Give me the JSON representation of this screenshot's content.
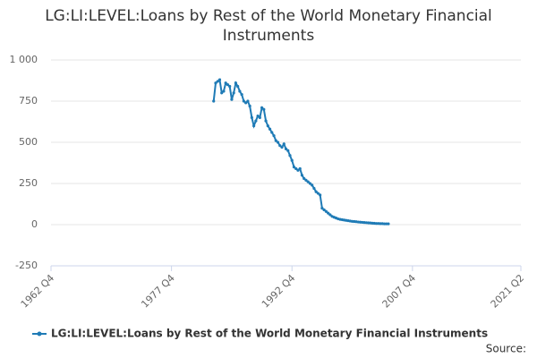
{
  "chart_data": {
    "type": "line",
    "title": "LG:LI:LEVEL:Loans by Rest of the World Monetary Financial Instruments",
    "source": "Source:",
    "x": [
      "1983 Q1",
      "1983 Q2",
      "1983 Q3",
      "1983 Q4",
      "1984 Q1",
      "1984 Q2",
      "1984 Q3",
      "1984 Q4",
      "1985 Q1",
      "1985 Q2",
      "1985 Q3",
      "1985 Q4",
      "1986 Q1",
      "1986 Q2",
      "1986 Q3",
      "1986 Q4",
      "1987 Q1",
      "1987 Q2",
      "1987 Q3",
      "1987 Q4",
      "1988 Q1",
      "1988 Q2",
      "1988 Q3",
      "1988 Q4",
      "1989 Q1",
      "1989 Q2",
      "1989 Q3",
      "1989 Q4",
      "1990 Q1",
      "1990 Q2",
      "1990 Q3",
      "1990 Q4",
      "1991 Q1",
      "1991 Q2",
      "1991 Q3",
      "1991 Q4",
      "1992 Q1",
      "1992 Q2",
      "1992 Q3",
      "1992 Q4",
      "1993 Q1",
      "1993 Q2",
      "1993 Q3",
      "1993 Q4",
      "1994 Q1",
      "1994 Q2",
      "1994 Q3",
      "1994 Q4",
      "1995 Q1",
      "1995 Q2",
      "1995 Q3",
      "1995 Q4",
      "1996 Q1",
      "1996 Q2",
      "1996 Q3",
      "1996 Q4",
      "1997 Q1",
      "1997 Q2",
      "1997 Q3",
      "1997 Q4",
      "1998 Q1",
      "1998 Q2",
      "1998 Q3",
      "1998 Q4",
      "1999 Q1",
      "1999 Q2",
      "1999 Q3",
      "1999 Q4",
      "2000 Q1",
      "2000 Q2",
      "2000 Q3",
      "2000 Q4",
      "2001 Q1",
      "2001 Q2",
      "2001 Q3",
      "2001 Q4",
      "2002 Q1",
      "2002 Q2",
      "2002 Q3",
      "2002 Q4",
      "2003 Q1",
      "2003 Q2",
      "2003 Q3",
      "2003 Q4",
      "2004 Q1",
      "2004 Q2",
      "2004 Q3",
      "2004 Q4"
    ],
    "series": [
      {
        "name": "LG:LI:LEVEL:Loans by Rest of the World Monetary Financial Instruments",
        "color": "#1f7bb6",
        "values": [
          750,
          860,
          870,
          880,
          800,
          810,
          860,
          850,
          840,
          760,
          800,
          860,
          840,
          810,
          790,
          750,
          740,
          750,
          720,
          650,
          600,
          630,
          660,
          650,
          710,
          700,
          630,
          600,
          580,
          560,
          540,
          510,
          500,
          480,
          470,
          490,
          460,
          450,
          420,
          390,
          350,
          340,
          330,
          340,
          300,
          280,
          270,
          260,
          250,
          240,
          220,
          200,
          190,
          180,
          100,
          90,
          80,
          70,
          60,
          50,
          45,
          40,
          35,
          32,
          30,
          28,
          26,
          24,
          22,
          20,
          19,
          18,
          16,
          15,
          14,
          13,
          12,
          11,
          10,
          9,
          8,
          7,
          7,
          6,
          6,
          5,
          5,
          5
        ]
      }
    ],
    "xlim": [
      "1962 Q4",
      "2021 Q2"
    ],
    "xticks": [
      "1962 Q4",
      "1977 Q4",
      "1992 Q4",
      "2007 Q4",
      "2021 Q2"
    ],
    "ylim": [
      -250,
      1000
    ],
    "yticks": [
      {
        "value": 1000,
        "label": "1 000"
      },
      750,
      500,
      250,
      0,
      -250
    ],
    "grid": true
  }
}
